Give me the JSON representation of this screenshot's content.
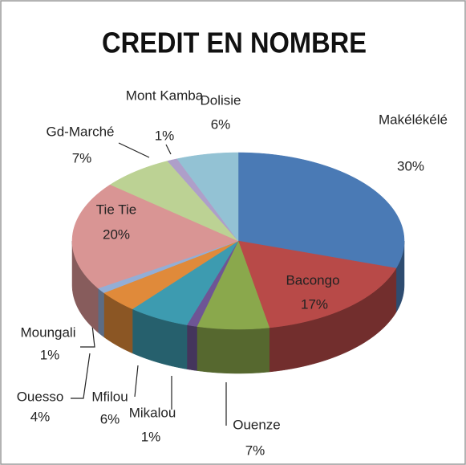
{
  "chart_data": {
    "type": "pie3d",
    "title": "CREDIT EN NOMBRE",
    "categories": [
      "Makélékélé",
      "Bacongo",
      "Ouenze",
      "Mikalou",
      "Mfilou",
      "Ouesso",
      "Moungali",
      "Tie Tie",
      "Gd-Marché",
      "Mont Kamba",
      "Dolisie"
    ],
    "values": [
      30,
      17,
      7,
      1,
      6,
      4,
      1,
      20,
      7,
      1,
      6
    ],
    "value_labels": [
      "30%",
      "17%",
      "7%",
      "1%",
      "6%",
      "4%",
      "1%",
      "20%",
      "7%",
      "1%",
      "6%"
    ],
    "colors": [
      "#4a7ab5",
      "#b84a48",
      "#8aa84c",
      "#6e5595",
      "#3d9bb0",
      "#e08a3a",
      "#93aed6",
      "#d99594",
      "#bcd294",
      "#ae9fc9",
      "#93c2d4"
    ]
  }
}
